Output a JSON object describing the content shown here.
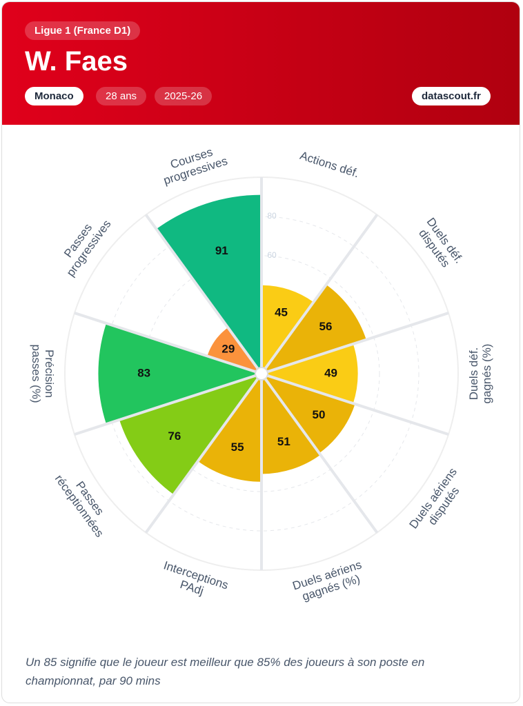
{
  "header": {
    "league": "Ligue 1 (France D1)",
    "player": "W. Faes",
    "team": "Monaco",
    "age": "28 ans",
    "season": "2025-26",
    "brand": "datascout.fr"
  },
  "chart_data": {
    "type": "pizza",
    "categories": [
      [
        "Actions déf."
      ],
      [
        "Duels déf.",
        "disputés"
      ],
      [
        "Duels déf.",
        "gagnés (%)"
      ],
      [
        "Duels aériens",
        "disputés"
      ],
      [
        "Duels aériens",
        "gagnés (%)"
      ],
      [
        "Interceptions",
        "PAdj"
      ],
      [
        "Passes",
        "réceptionnées"
      ],
      [
        "Précision",
        "passes (%)"
      ],
      [
        "Passes",
        "progressives"
      ],
      [
        "Courses",
        "progressives"
      ]
    ],
    "values": [
      45,
      56,
      49,
      50,
      51,
      55,
      76,
      83,
      29,
      91
    ],
    "colors": [
      "#facc15",
      "#eab308",
      "#facc15",
      "#eab308",
      "#eab308",
      "#eab308",
      "#84cc16",
      "#22c55e",
      "#fb923c",
      "#10b981"
    ],
    "ylim": [
      0,
      100
    ],
    "yticks": [
      60,
      80
    ],
    "grid": true
  },
  "footnote": "Un 85 signifie que le joueur est meilleur que 85% des joueurs à son poste en championnat, par 90 mins"
}
